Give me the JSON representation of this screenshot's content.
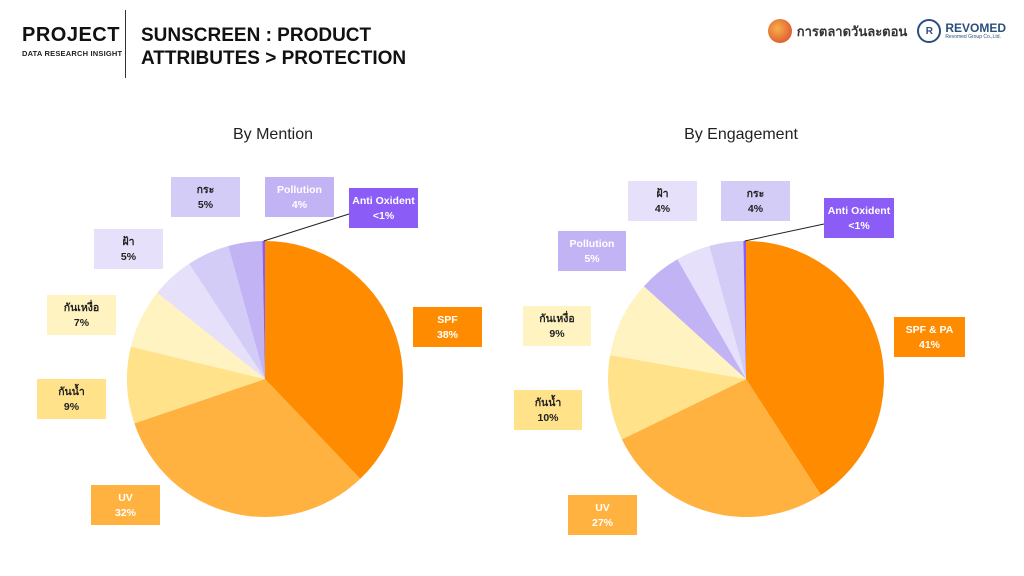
{
  "header": {
    "project": "PROJECT",
    "project_sub": "DATA RESEARCH INSIGHT",
    "title_line1": "SUNSCREEN : PRODUCT",
    "title_line2": "ATTRIBUTES > PROTECTION"
  },
  "logos": {
    "market_name": "การตลาดวันละตอน",
    "revomed_mark": "R",
    "revomed_name": "REVOMED",
    "revomed_tag": "Revomed Group Co.,Ltd."
  },
  "colors": {
    "orange": "#FF8C00",
    "light_orange": "#FFB23F",
    "pale_yellow": "#FFE28A",
    "cream": "#FFF3C2",
    "lavender_light": "#E6E0FA",
    "lavender": "#D3CCF7",
    "lavender_mid": "#C2B4F4",
    "purple": "#8B5CF6"
  },
  "chart_data": [
    {
      "type": "pie",
      "title": "By Mention",
      "slices": [
        {
          "label": "SPF",
          "value_text": "38%",
          "value": 38,
          "color": "#FF8C00",
          "text_color": "#ffffff"
        },
        {
          "label": "UV",
          "value_text": "32%",
          "value": 32,
          "color": "#FFB23F",
          "text_color": "#ffffff"
        },
        {
          "label": "กันน้ำ",
          "value_text": "9%",
          "value": 9,
          "color": "#FFE28A",
          "text_color": "#222222"
        },
        {
          "label": "กันเหงื่อ",
          "value_text": "7%",
          "value": 7,
          "color": "#FFF3C2",
          "text_color": "#222222"
        },
        {
          "label": "ฝ้า",
          "value_text": "5%",
          "value": 5,
          "color": "#E6E0FA",
          "text_color": "#222222"
        },
        {
          "label": "กระ",
          "value_text": "5%",
          "value": 5,
          "color": "#D3CCF7",
          "text_color": "#222222"
        },
        {
          "label": "Pollution",
          "value_text": "4%",
          "value": 4,
          "color": "#C2B4F4",
          "text_color": "#ffffff"
        },
        {
          "label": "Anti Oxident",
          "value_text": "<1%",
          "value": 0.3,
          "color": "#8B5CF6",
          "text_color": "#ffffff"
        }
      ]
    },
    {
      "type": "pie",
      "title": "By Engagement",
      "slices": [
        {
          "label": "SPF & PA",
          "value_text": "41%",
          "value": 41,
          "color": "#FF8C00",
          "text_color": "#ffffff"
        },
        {
          "label": "UV",
          "value_text": "27%",
          "value": 27,
          "color": "#FFB23F",
          "text_color": "#ffffff"
        },
        {
          "label": "กันน้ำ",
          "value_text": "10%",
          "value": 10,
          "color": "#FFE28A",
          "text_color": "#222222"
        },
        {
          "label": "กันเหงื่อ",
          "value_text": "9%",
          "value": 9,
          "color": "#FFF3C2",
          "text_color": "#222222"
        },
        {
          "label": "Pollution",
          "value_text": "5%",
          "value": 5,
          "color": "#C2B4F4",
          "text_color": "#ffffff"
        },
        {
          "label": "ฝ้า",
          "value_text": "4%",
          "value": 4,
          "color": "#E6E0FA",
          "text_color": "#222222"
        },
        {
          "label": "กระ",
          "value_text": "4%",
          "value": 4,
          "color": "#D3CCF7",
          "text_color": "#222222"
        },
        {
          "label": "Anti Oxident",
          "value_text": "<1%",
          "value": 0.3,
          "color": "#8B5CF6",
          "text_color": "#ffffff"
        }
      ]
    }
  ]
}
